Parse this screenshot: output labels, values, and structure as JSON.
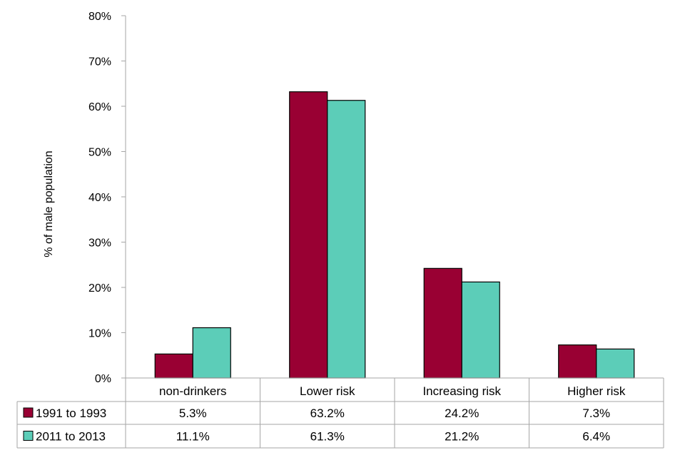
{
  "chart_data": {
    "type": "bar",
    "ylabel": "% of male population",
    "xlabel": "",
    "ylim": [
      0,
      80
    ],
    "y_ticks": [
      0,
      10,
      20,
      30,
      40,
      50,
      60,
      70,
      80
    ],
    "y_tick_labels": [
      "0%",
      "10%",
      "20%",
      "30%",
      "40%",
      "50%",
      "60%",
      "70%",
      "80%"
    ],
    "categories": [
      "non-drinkers",
      "Lower risk",
      "Increasing risk",
      "Higher risk"
    ],
    "series": [
      {
        "name": "1991 to 1993",
        "color": "#990033",
        "values": [
          5.3,
          63.2,
          24.2,
          7.3
        ],
        "labels": [
          "5.3%",
          "63.2%",
          "24.2%",
          "7.3%"
        ]
      },
      {
        "name": "2011 to 2013",
        "color": "#5ccdb8",
        "values": [
          11.1,
          61.3,
          21.2,
          6.4
        ],
        "labels": [
          "11.1%",
          "61.3%",
          "21.2%",
          "6.4%"
        ]
      }
    ],
    "grid": false,
    "legend": "data-table"
  }
}
